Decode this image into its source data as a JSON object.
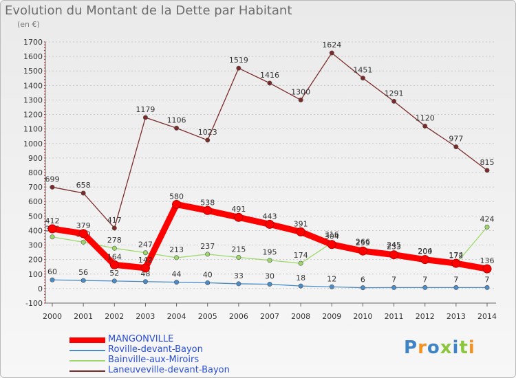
{
  "header": {
    "title": "Evolution du Montant de la Dette par Habitant",
    "subtitle": "(en €)"
  },
  "logo": {
    "text": "Proxiti",
    "colors": [
      "#3d83c6",
      "#f29222",
      "#3d83c6",
      "#8cc63f",
      "#3d83c6",
      "#8cc63f",
      "#f29222"
    ]
  },
  "chart_data": {
    "type": "line",
    "title": "Evolution du Montant de la Dette par Habitant",
    "subtitle": "(en €)",
    "xlabel": "",
    "ylabel": "",
    "x": [
      "2000",
      "2001",
      "2002",
      "2003",
      "2004",
      "2005",
      "2006",
      "2007",
      "2008",
      "2009",
      "2010",
      "2011",
      "2012",
      "2013",
      "2014"
    ],
    "ylim": [
      -100,
      1700
    ],
    "yticks": [
      "-100",
      "0",
      "100",
      "200",
      "300",
      "400",
      "500",
      "600",
      "700",
      "800",
      "900",
      "1000",
      "1100",
      "1200",
      "1300",
      "1400",
      "1500",
      "1600",
      "1700"
    ],
    "grid": "horizontal dashed",
    "legend_position": "bottom-left",
    "series": [
      {
        "name": "Laneuveville-devant-Bayon",
        "color": "#7b2a2a",
        "values": [
          699,
          658,
          417,
          1179,
          1106,
          1023,
          1519,
          1416,
          1300,
          1624,
          1451,
          1291,
          1120,
          977,
          815
        ],
        "labels": [
          "699",
          "658",
          "417",
          "1179",
          "1106",
          "1023",
          "1519",
          "1416",
          "1300",
          "1624",
          "1451",
          "1291",
          "1120",
          "977",
          "815"
        ]
      },
      {
        "name": "Bainville-aux-Miroirs",
        "color": "#9ed86a",
        "values": [
          356,
          320,
          278,
          247,
          213,
          237,
          215,
          195,
          174,
          316,
          266,
          245,
          204,
          172,
          424
        ],
        "labels": [
          "356",
          "320",
          "278",
          "247",
          "213",
          "237",
          "215",
          "195",
          "174",
          "316",
          "266",
          "245",
          "204",
          "172",
          "424"
        ]
      },
      {
        "name": "Roville-devant-Bayon",
        "color": "#4a8cc8",
        "values": [
          60,
          56,
          52,
          48,
          44,
          40,
          33,
          30,
          18,
          12,
          6,
          7,
          7,
          7,
          7
        ],
        "labels": [
          "60",
          "56",
          "52",
          "48",
          "44",
          "40",
          "33",
          "30",
          "18",
          "12",
          "6",
          "7",
          "7",
          "7",
          "7"
        ]
      },
      {
        "name": "MANGONVILLE",
        "color": "#ff0000",
        "values": [
          412,
          379,
          164,
          142,
          580,
          538,
          491,
          443,
          391,
          304,
          259,
          233,
          200,
          174,
          136
        ],
        "labels": [
          "412",
          "379",
          "164",
          "142",
          "580",
          "538",
          "491",
          "443",
          "391",
          "304",
          "259",
          "233",
          "200",
          "174",
          "136"
        ]
      }
    ],
    "legend": [
      {
        "name": "MANGONVILLE",
        "color": "#ff0000",
        "text_color": "#2a4fd6"
      },
      {
        "name": "Roville-devant-Bayon",
        "color": "#4a8cc8",
        "text_color": "#2a4fd6"
      },
      {
        "name": "Bainville-aux-Miroirs",
        "color": "#9ed86a",
        "text_color": "#2a4fd6"
      },
      {
        "name": "Laneuveville-devant-Bayon",
        "color": "#7b2a2a",
        "text_color": "#2a4fd6"
      }
    ]
  }
}
